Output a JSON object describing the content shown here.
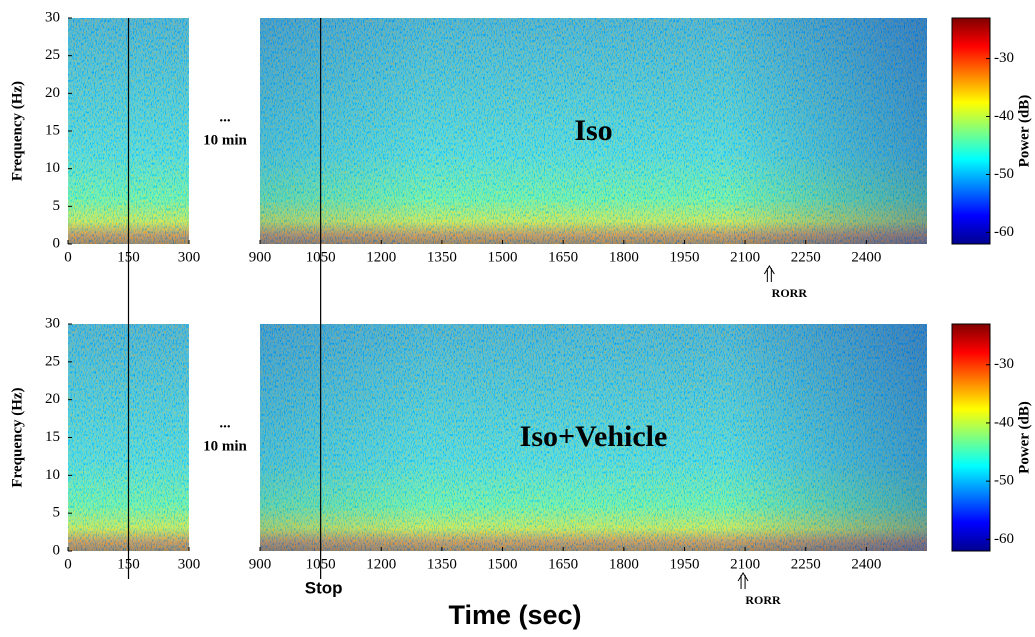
{
  "xlabel": "Time (sec)",
  "markers": [
    {
      "x": 150
    },
    {
      "x": 1050,
      "label": "Stop"
    }
  ],
  "chart_data": [
    {
      "type": "spectrogram",
      "label": "Iso",
      "ylabel": "Frequency (Hz)",
      "ylim": [
        0,
        30
      ],
      "yticks": [
        0,
        5,
        10,
        15,
        20,
        25,
        30
      ],
      "panels": [
        {
          "xlim": [
            0,
            300
          ],
          "xticks": [
            0,
            150,
            300
          ]
        },
        {
          "xlim": [
            900,
            2550
          ],
          "xticks": [
            900,
            1050,
            1200,
            1350,
            1500,
            1650,
            1800,
            1950,
            2100,
            2250,
            2400
          ]
        }
      ],
      "gap_ellipsis": "...",
      "gap_label": "10 min",
      "clabel": "Power (dB)",
      "clim": [
        -62,
        -23
      ],
      "cticks": [
        -30,
        -40,
        -50,
        -60
      ],
      "annotation": {
        "label": "RORR",
        "x": 2160
      }
    },
    {
      "type": "spectrogram",
      "label": "Iso+Vehicle",
      "ylabel": "Frequency (Hz)",
      "ylim": [
        0,
        30
      ],
      "yticks": [
        0,
        5,
        10,
        15,
        20,
        25,
        30
      ],
      "panels": [
        {
          "xlim": [
            0,
            300
          ],
          "xticks": [
            0,
            150,
            300
          ]
        },
        {
          "xlim": [
            900,
            2550
          ],
          "xticks": [
            900,
            1050,
            1200,
            1350,
            1500,
            1650,
            1800,
            1950,
            2100,
            2250,
            2400
          ]
        }
      ],
      "gap_ellipsis": "...",
      "gap_label": "10 min",
      "clabel": "Power (dB)",
      "clim": [
        -62,
        -23
      ],
      "cticks": [
        -30,
        -40,
        -50,
        -60
      ],
      "annotation": {
        "label": "RORR",
        "x": 2095
      }
    }
  ]
}
